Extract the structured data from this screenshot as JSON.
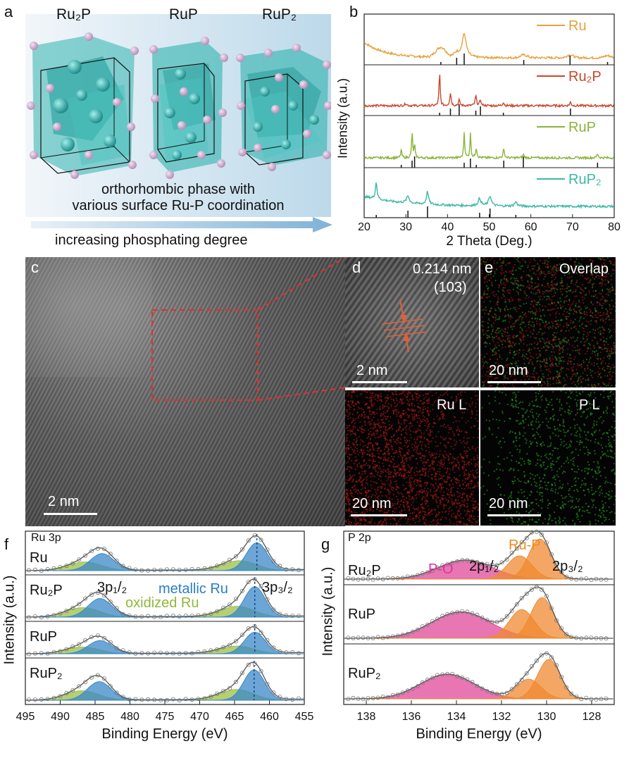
{
  "panels": {
    "a": {
      "letter": "a",
      "phases": [
        "Ru₂P",
        "RuP",
        "RuP₂"
      ],
      "caption_line1": "orthorhombic phase with",
      "caption_line2": "various surface Ru-P coordination",
      "arrow_text": "increasing phosphating degree"
    },
    "b": {
      "letter": "b",
      "ylabel": "Intensity (a.u.)",
      "xlabel": "2 Theta (Deg.)",
      "xticks": [
        "20",
        "30",
        "40",
        "50",
        "60",
        "70",
        "80"
      ],
      "colors": {
        "Ru": "#e8a03c",
        "Ru2P": "#c9472a",
        "RuP": "#8cb33a",
        "RuP2": "#3bb8a6"
      }
    },
    "c": {
      "letter": "c",
      "scale": "2 nm"
    },
    "d": {
      "letter": "d",
      "spacing": "0.214 nm",
      "plane": "(103)",
      "scale": "2 nm"
    },
    "e": {
      "letter": "e",
      "overlap": "Overlap",
      "ru": "Ru L",
      "p": "P L",
      "scale": "20 nm"
    },
    "f": {
      "letter": "f",
      "title": "Ru 3p",
      "ylabel": "Intensity (a.u.)",
      "xlabel": "Binding Energy (eV)",
      "xticks": [
        "495",
        "490",
        "485",
        "480",
        "475",
        "470",
        "465",
        "460",
        "455"
      ],
      "samples": [
        "Ru",
        "Ru₂P",
        "RuP",
        "RuP₂"
      ],
      "peak_left": "3p₁/₂",
      "peak_right": "3p₃/₂",
      "metallic": "metallic Ru",
      "oxidized": "oxidized Ru"
    },
    "g": {
      "letter": "g",
      "title": "P 2p",
      "ylabel": "Intensity (a.u.)",
      "xlabel": "Binding Energy (eV)",
      "xticks": [
        "138",
        "136",
        "134",
        "132",
        "130",
        "128"
      ],
      "samples": [
        "Ru₂P",
        "RuP",
        "RuP₂"
      ],
      "po": "P-O",
      "rup": "Ru-P",
      "p12": "2p₁/₂",
      "p32": "2p₃/₂"
    }
  },
  "chart_data": [
    {
      "type": "line",
      "panel": "b",
      "xlabel": "2 Theta (Deg.)",
      "ylabel": "Intensity (a.u.)",
      "xlim": [
        20,
        80
      ],
      "series": [
        {
          "name": "Ru",
          "peaks": [
            38.4,
            42.2,
            44.0,
            58.3,
            69.4,
            78.4
          ]
        },
        {
          "name": "Ru₂P",
          "peaks": [
            38.1,
            40.7,
            42.8,
            46.8,
            47.9,
            53.4,
            69.5
          ]
        },
        {
          "name": "RuP",
          "peaks": [
            28.9,
            31.5,
            32.1,
            44.0,
            45.5,
            46.9,
            53.5,
            58.2,
            76.0
          ]
        },
        {
          "name": "RuP₂",
          "peaks": [
            22.9,
            30.5,
            35.2,
            47.7,
            50.2,
            56.4
          ]
        }
      ]
    },
    {
      "type": "line",
      "panel": "f",
      "xlabel": "Binding Energy (eV)",
      "ylabel": "Intensity (a.u.)",
      "xlim": [
        495,
        455
      ],
      "series": [
        {
          "name": "Ru",
          "peaks": [
            484.0,
            461.8
          ]
        },
        {
          "name": "Ru₂P",
          "peaks": [
            484.3,
            462.1
          ]
        },
        {
          "name": "RuP",
          "peaks": [
            484.3,
            462.1
          ]
        },
        {
          "name": "RuP₂",
          "peaks": [
            484.4,
            462.2
          ]
        }
      ]
    },
    {
      "type": "line",
      "panel": "g",
      "xlabel": "Binding Energy (eV)",
      "ylabel": "Intensity (a.u.)",
      "xlim": [
        139,
        127
      ],
      "series": [
        {
          "name": "Ru₂P",
          "peaks": [
            133.6,
            131.2,
            130.3
          ]
        },
        {
          "name": "RuP",
          "peaks": [
            133.8,
            131.1,
            130.2
          ]
        },
        {
          "name": "RuP₂",
          "peaks": [
            134.4,
            130.8,
            129.9
          ]
        }
      ]
    }
  ]
}
